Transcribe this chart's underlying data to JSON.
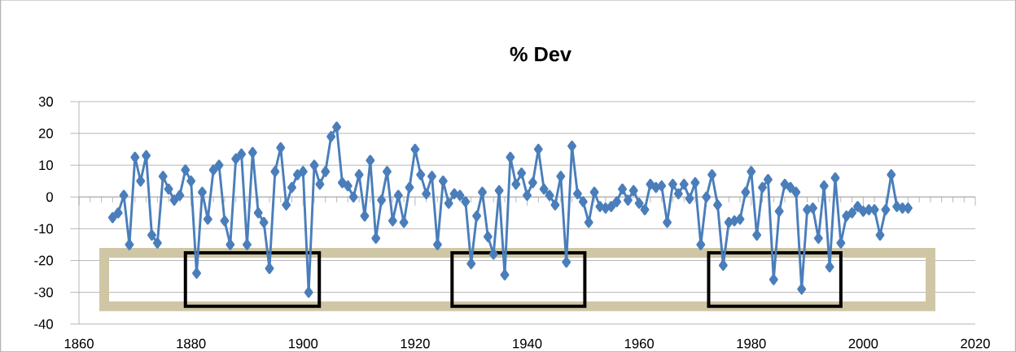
{
  "chart_data": {
    "type": "line",
    "title": "% Dev",
    "x": [
      1866,
      1867,
      1868,
      1869,
      1870,
      1871,
      1872,
      1873,
      1874,
      1875,
      1876,
      1877,
      1878,
      1879,
      1880,
      1881,
      1882,
      1883,
      1884,
      1885,
      1886,
      1887,
      1888,
      1889,
      1890,
      1891,
      1892,
      1893,
      1894,
      1895,
      1896,
      1897,
      1898,
      1899,
      1900,
      1901,
      1902,
      1903,
      1904,
      1905,
      1906,
      1907,
      1908,
      1909,
      1910,
      1911,
      1912,
      1913,
      1914,
      1915,
      1916,
      1917,
      1918,
      1919,
      1920,
      1921,
      1922,
      1923,
      1924,
      1925,
      1926,
      1927,
      1928,
      1929,
      1930,
      1931,
      1932,
      1933,
      1934,
      1935,
      1936,
      1937,
      1938,
      1939,
      1940,
      1941,
      1942,
      1943,
      1944,
      1945,
      1946,
      1947,
      1948,
      1949,
      1950,
      1951,
      1952,
      1953,
      1954,
      1955,
      1956,
      1957,
      1958,
      1959,
      1960,
      1961,
      1962,
      1963,
      1964,
      1965,
      1966,
      1967,
      1968,
      1969,
      1970,
      1971,
      1972,
      1973,
      1974,
      1975,
      1976,
      1977,
      1978,
      1979,
      1980,
      1981,
      1982,
      1983,
      1984,
      1985,
      1986,
      1987,
      1988,
      1989,
      1990,
      1991,
      1992,
      1993,
      1994,
      1995,
      1996,
      1997,
      1998,
      1999,
      2000,
      2001,
      2002,
      2003,
      2004,
      2005,
      2006,
      2007,
      2008
    ],
    "values": [
      -6.5,
      -5,
      0.5,
      -15,
      12.5,
      5,
      13,
      -12,
      -14.5,
      6.5,
      2.5,
      -1,
      0.5,
      8.5,
      5,
      -24,
      1.5,
      -7,
      8.5,
      10,
      -7.5,
      -15,
      12,
      13.5,
      -15,
      14,
      -5,
      -8,
      -22.5,
      8,
      15.5,
      -2.5,
      3,
      7,
      8,
      -30,
      10,
      4,
      8,
      19,
      22,
      4.5,
      3.5,
      0,
      7,
      -6,
      11.5,
      -13,
      -1,
      8,
      -7.5,
      0.5,
      -8,
      3,
      15,
      7,
      1,
      6.5,
      -15,
      5,
      -2,
      1,
      0.5,
      -1.5,
      -21,
      -6,
      1.5,
      -12.5,
      -18,
      2,
      -24.5,
      12.5,
      4,
      7.5,
      0.5,
      4.5,
      15,
      2.5,
      0.5,
      -2.5,
      6.5,
      -20.5,
      16,
      1,
      -1.5,
      -8,
      1.5,
      -3,
      -3.5,
      -3,
      -1.5,
      2.5,
      -1,
      2,
      -2,
      -4,
      4,
      3,
      3.5,
      -8,
      4,
      1,
      4,
      -0.5,
      4.5,
      -15,
      0,
      7,
      -2.5,
      -21.5,
      -8,
      -7.5,
      -7,
      1.5,
      8,
      -12,
      3,
      5.5,
      -26,
      -4.5,
      4,
      3,
      1.5,
      -29,
      -4,
      -3.5,
      -13,
      3.5,
      -22,
      6,
      -14.5,
      -6,
      -5,
      -3,
      -4.5,
      -4,
      -4,
      -12,
      -4,
      7,
      -3,
      -3.5,
      -3.5
    ],
    "color": "#4a7ebb",
    "marker": "diamond",
    "grid": "y",
    "xlim": [
      1860,
      2020
    ],
    "xticks": [
      1860,
      1880,
      1900,
      1920,
      1940,
      1960,
      1980,
      2000,
      2020
    ],
    "ylim": [
      -40,
      30
    ],
    "yticks": [
      -40,
      -30,
      -20,
      -10,
      0,
      10,
      20,
      30
    ]
  }
}
